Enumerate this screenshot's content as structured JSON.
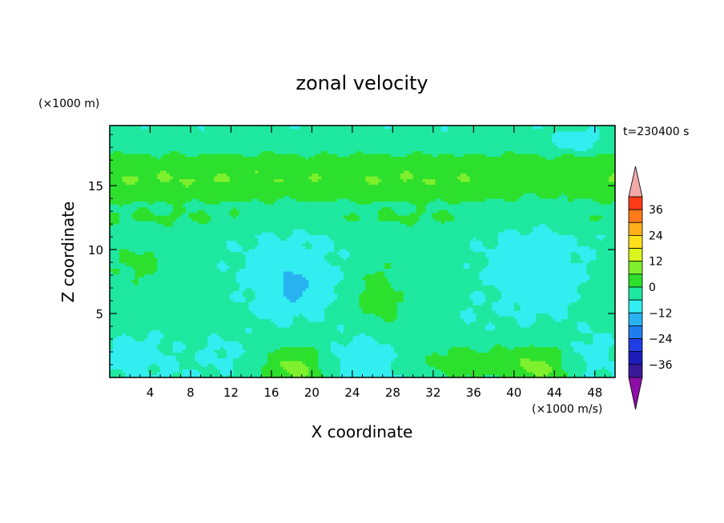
{
  "chart_data": {
    "type": "heatmap",
    "title": "zonal velocity",
    "xlabel": "X coordinate",
    "ylabel": "Z coordinate",
    "x_unit": "(×1000 m/s)",
    "y_unit": "(×1000 m)",
    "time_label": "t=230400 s",
    "xlim": [
      0,
      50
    ],
    "ylim": [
      0,
      19.7
    ],
    "x_ticks": [
      4,
      8,
      12,
      16,
      20,
      24,
      28,
      32,
      36,
      40,
      44,
      48
    ],
    "y_ticks": [
      5,
      10,
      15
    ],
    "colorbar": {
      "labels": [
        36,
        24,
        12,
        0,
        -12,
        -24,
        -36
      ],
      "levels": [
        -42,
        -36,
        -30,
        -24,
        -18,
        -12,
        -6,
        0,
        6,
        12,
        18,
        24,
        30,
        36,
        42
      ],
      "colors": [
        "#7a1f9e",
        "#3a1a9a",
        "#1c1cb8",
        "#1f3ee6",
        "#1f7df0",
        "#28b3f0",
        "#33eef0",
        "#1fe8a0",
        "#2de02d",
        "#7ef02d",
        "#d8f51e",
        "#ffe01a",
        "#ffb01a",
        "#ff7a18",
        "#ff3a18",
        "#e81818"
      ],
      "over_color": "#f3a8a8",
      "under_color": "#8e0fa8"
    },
    "field": {
      "background": -4.5,
      "bands": [
        {
          "z": 0.0,
          "value": -6
        },
        {
          "z": 2.5,
          "value": -3
        },
        {
          "z": 5.0,
          "value": -2
        },
        {
          "z": 8.0,
          "value": -3
        },
        {
          "z": 11.0,
          "value": -4
        },
        {
          "z": 12.5,
          "value": 1
        },
        {
          "z": 13.5,
          "value": -1
        },
        {
          "z": 14.0,
          "value": 2
        },
        {
          "z": 15.5,
          "value": 6
        },
        {
          "z": 16.5,
          "value": 4
        },
        {
          "z": 17.3,
          "value": 1
        },
        {
          "z": 18.0,
          "value": -3
        },
        {
          "z": 19.7,
          "value": -5
        }
      ],
      "features": [
        {
          "x": 18.0,
          "z": 7.5,
          "rx": 6.5,
          "rz": 4.5,
          "value": -9
        },
        {
          "x": 18.2,
          "z": 7.2,
          "rx": 1.4,
          "rz": 1.2,
          "value": -16
        },
        {
          "x": 42.0,
          "z": 8.0,
          "rx": 6.0,
          "rz": 5.0,
          "value": -9
        },
        {
          "x": 18.5,
          "z": 0.7,
          "rx": 4.0,
          "rz": 1.8,
          "value": 8
        },
        {
          "x": 42.0,
          "z": 0.7,
          "rx": 4.0,
          "rz": 1.8,
          "value": 8
        },
        {
          "x": 26.5,
          "z": 6.5,
          "rx": 2.5,
          "rz": 3.0,
          "value": 3
        },
        {
          "x": 3.0,
          "z": 9.0,
          "rx": 3.0,
          "rz": 1.5,
          "value": 2
        },
        {
          "x": 3.0,
          "z": 2.0,
          "rx": 4.0,
          "rz": 2.0,
          "value": -8
        },
        {
          "x": 25.0,
          "z": 1.5,
          "rx": 3.5,
          "rz": 2.0,
          "value": -10
        },
        {
          "x": 35.0,
          "z": 1.2,
          "rx": 4.0,
          "rz": 1.5,
          "value": 4
        },
        {
          "x": 48.0,
          "z": 2.0,
          "rx": 2.5,
          "rz": 2.0,
          "value": -8
        },
        {
          "x": 46.0,
          "z": 18.5,
          "rx": 2.0,
          "rz": 0.7,
          "value": -12
        },
        {
          "x": 11.0,
          "z": 2.0,
          "rx": 3.0,
          "rz": 1.5,
          "value": -7
        },
        {
          "x": 30.0,
          "z": 8.5,
          "rx": 2.5,
          "rz": 2.0,
          "value": -2
        },
        {
          "x": 36.0,
          "z": 5.0,
          "rx": 2.5,
          "rz": 2.0,
          "value": -6
        }
      ]
    }
  }
}
